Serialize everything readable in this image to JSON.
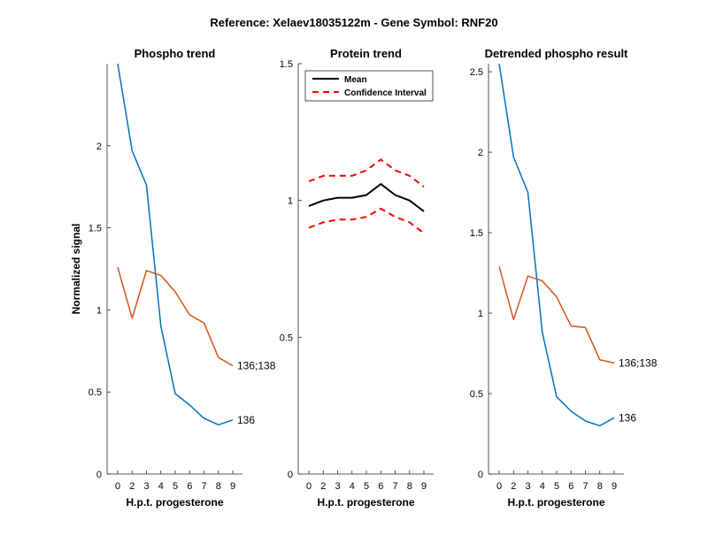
{
  "figure_title": "Reference:  Xelaev18035122m - Gene Symbol:  RNF20",
  "chart_data": [
    {
      "type": "line",
      "title": "Phospho trend",
      "xlabel": "H.p.t. progesterone",
      "ylabel": "Normalized signal",
      "x_ticks": [
        "0",
        "2",
        "3",
        "4",
        "5",
        "6",
        "7",
        "8",
        "9"
      ],
      "ylim": [
        0,
        2.5
      ],
      "y_ticks": [
        "0",
        "0.5",
        "1",
        "1.5",
        "2"
      ],
      "y_tick_values": [
        0,
        0.5,
        1,
        1.5,
        2
      ],
      "series": [
        {
          "name": "136",
          "color": "#0072BD",
          "values": [
            2.5,
            1.97,
            1.76,
            0.9,
            0.49,
            0.42,
            0.34,
            0.3,
            0.33
          ]
        },
        {
          "name": "136;138",
          "color": "#D95319",
          "values": [
            1.26,
            0.95,
            1.24,
            1.21,
            1.11,
            0.97,
            0.92,
            0.71,
            0.66
          ]
        }
      ]
    },
    {
      "type": "line",
      "title": "Protein trend",
      "xlabel": "H.p.t. progesterone",
      "ylabel": "",
      "x_ticks": [
        "0",
        "2",
        "3",
        "4",
        "5",
        "6",
        "7",
        "8",
        "9"
      ],
      "ylim": [
        0,
        1.5
      ],
      "y_ticks": [
        "0",
        "0.5",
        "1",
        "1.5"
      ],
      "y_tick_values": [
        0,
        0.5,
        1,
        1.5
      ],
      "legend": {
        "placement": "top-right",
        "entries": [
          "Mean",
          "Confidence Interval"
        ]
      },
      "series": [
        {
          "name": "Mean",
          "color": "#000000",
          "style": "solid",
          "values": [
            0.98,
            1.0,
            1.01,
            1.01,
            1.02,
            1.06,
            1.02,
            1.0,
            0.96
          ]
        },
        {
          "name": "Confidence Interval",
          "color": "#FF0000",
          "style": "dashed",
          "values": [
            1.07,
            1.09,
            1.09,
            1.09,
            1.11,
            1.15,
            1.11,
            1.09,
            1.05
          ]
        },
        {
          "name": "Confidence Interval",
          "color": "#FF0000",
          "style": "dashed",
          "values": [
            0.9,
            0.92,
            0.93,
            0.93,
            0.94,
            0.97,
            0.94,
            0.92,
            0.88
          ]
        }
      ]
    },
    {
      "type": "line",
      "title": "Detrended phospho result",
      "xlabel": "H.p.t. progesterone",
      "ylabel": "",
      "x_ticks": [
        "0",
        "2",
        "3",
        "4",
        "5",
        "6",
        "7",
        "8",
        "9"
      ],
      "ylim": [
        0,
        2.55
      ],
      "y_ticks": [
        "0",
        "0.5",
        "1",
        "1.5",
        "2",
        "2.5"
      ],
      "y_tick_values": [
        0,
        0.5,
        1,
        1.5,
        2,
        2.5
      ],
      "series": [
        {
          "name": "136",
          "color": "#0072BD",
          "values": [
            2.55,
            1.97,
            1.75,
            0.88,
            0.48,
            0.39,
            0.33,
            0.3,
            0.35
          ]
        },
        {
          "name": "136;138",
          "color": "#D95319",
          "values": [
            1.29,
            0.96,
            1.23,
            1.2,
            1.1,
            0.92,
            0.91,
            0.71,
            0.69
          ]
        }
      ]
    }
  ]
}
